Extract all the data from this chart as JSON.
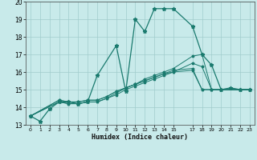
{
  "xlabel": "Humidex (Indice chaleur)",
  "ylabel": "",
  "xlim": [
    -0.5,
    23.5
  ],
  "ylim": [
    13,
    20
  ],
  "yticks": [
    13,
    14,
    15,
    16,
    17,
    18,
    19,
    20
  ],
  "xticks": [
    0,
    1,
    2,
    3,
    4,
    5,
    6,
    7,
    8,
    9,
    10,
    11,
    12,
    13,
    14,
    15,
    17,
    18,
    19,
    20,
    21,
    22,
    23
  ],
  "bg_color": "#c8eaea",
  "grid_color": "#a0cccc",
  "line_color": "#1a7a6e",
  "lines": [
    {
      "x": [
        0,
        1,
        2,
        3,
        4,
        5,
        6,
        7,
        9,
        10,
        11,
        12,
        13,
        14,
        15,
        17,
        18,
        19,
        20,
        21,
        22,
        23
      ],
      "y": [
        13.5,
        13.2,
        13.9,
        14.3,
        14.3,
        14.2,
        14.3,
        15.8,
        17.5,
        14.9,
        19.0,
        18.3,
        19.6,
        19.6,
        19.6,
        18.6,
        17.0,
        16.4,
        15.0,
        15.1,
        15.0,
        15.0
      ]
    },
    {
      "x": [
        0,
        3,
        4,
        5,
        6,
        7,
        8,
        9,
        10,
        11,
        12,
        13,
        14,
        15,
        17,
        18,
        19,
        20,
        22,
        23
      ],
      "y": [
        13.5,
        14.3,
        14.2,
        14.2,
        14.3,
        14.3,
        14.5,
        14.8,
        15.1,
        15.3,
        15.6,
        15.8,
        16.0,
        16.2,
        16.9,
        17.0,
        15.0,
        15.0,
        15.0,
        15.0
      ]
    },
    {
      "x": [
        0,
        3,
        4,
        5,
        6,
        7,
        8,
        9,
        10,
        11,
        12,
        13,
        14,
        15,
        17,
        18,
        19,
        20,
        22,
        23
      ],
      "y": [
        13.5,
        14.3,
        14.2,
        14.2,
        14.3,
        14.3,
        14.5,
        14.7,
        15.0,
        15.2,
        15.4,
        15.6,
        15.8,
        16.0,
        16.5,
        16.3,
        15.0,
        15.0,
        15.0,
        15.0
      ]
    },
    {
      "x": [
        0,
        3,
        4,
        5,
        6,
        7,
        8,
        9,
        10,
        11,
        12,
        13,
        14,
        15,
        17,
        18,
        19,
        20,
        22,
        23
      ],
      "y": [
        13.5,
        14.4,
        14.3,
        14.3,
        14.4,
        14.4,
        14.6,
        14.9,
        15.1,
        15.3,
        15.5,
        15.7,
        15.9,
        16.1,
        16.2,
        15.0,
        15.0,
        15.0,
        15.0,
        15.0
      ]
    },
    {
      "x": [
        0,
        3,
        4,
        5,
        6,
        7,
        8,
        9,
        10,
        11,
        12,
        13,
        14,
        15,
        17,
        18,
        19,
        20,
        22,
        23
      ],
      "y": [
        13.5,
        14.4,
        14.3,
        14.3,
        14.4,
        14.4,
        14.6,
        14.9,
        15.1,
        15.3,
        15.5,
        15.7,
        15.9,
        16.0,
        16.1,
        15.0,
        15.0,
        15.0,
        15.0,
        15.0
      ]
    }
  ]
}
